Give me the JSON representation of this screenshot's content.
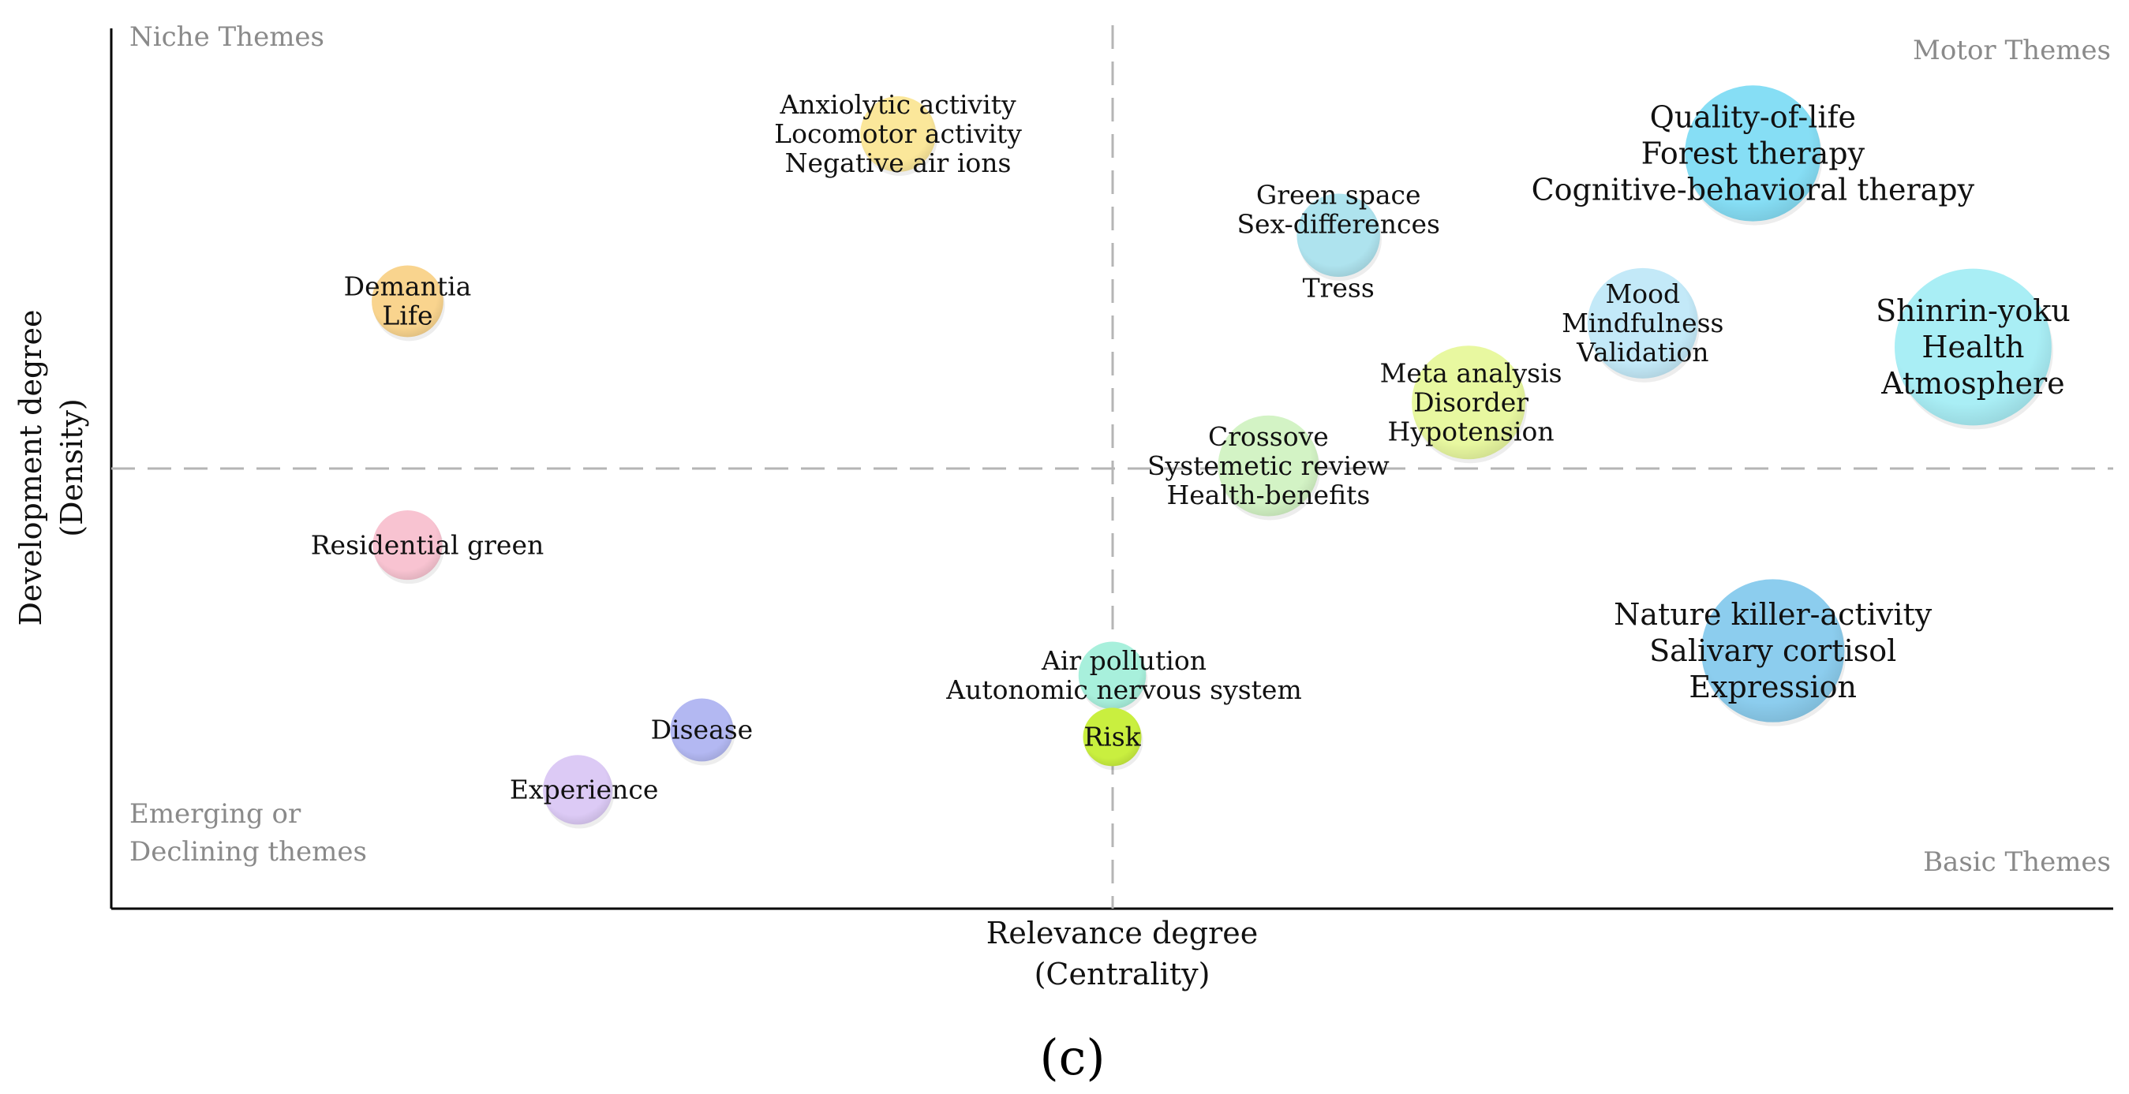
{
  "chart_data": {
    "type": "scatter",
    "subtype": "strategic-diagram-bubble",
    "xlabel": "Relevance degree",
    "xlabel_sub": "(Centrality)",
    "ylabel": "Development degree",
    "ylabel_sub": "(Density)",
    "xlim": [
      0,
      100
    ],
    "ylim": [
      0,
      100
    ],
    "x_divider": 50,
    "y_divider": 50,
    "grid": false,
    "panel_label": "(c)",
    "quadrants": {
      "top_left": "Niche Themes",
      "top_right": "Motor Themes",
      "bottom_left_line1": "Emerging or",
      "bottom_left_line2": "Declining themes",
      "bottom_right": "Basic Themes"
    },
    "clusters": [
      {
        "id": "anxiolytic",
        "x": 39.3,
        "y": 88,
        "size": 18,
        "color": "#fbe79a",
        "labels": [
          "Anxiolytic activity",
          "Locomotor activity",
          "Negative air ions"
        ]
      },
      {
        "id": "demantia",
        "x": 14.8,
        "y": 69,
        "size": 16,
        "color": "#f9d48e",
        "labels": [
          "Demantia",
          "Life"
        ]
      },
      {
        "id": "green-space",
        "x": 61.3,
        "y": 76.5,
        "size": 22,
        "color": "#aee3ee",
        "labels": [
          "Green space",
          "Sex-differences",
          "Tress"
        ]
      },
      {
        "id": "quality-of-life",
        "x": 82,
        "y": 85.8,
        "size": 55,
        "color": "#86def5",
        "labels": [
          "Quality-of-life",
          "Forest therapy",
          "Cognitive-behavioral therapy"
        ]
      },
      {
        "id": "mood",
        "x": 76.5,
        "y": 66.5,
        "size": 38,
        "color": "#c3e9f8",
        "labels": [
          "Mood",
          "Mindfulness",
          "Validation"
        ]
      },
      {
        "id": "shinrin-yoku",
        "x": 93,
        "y": 63.8,
        "size": 70,
        "color": "#a9eef5",
        "labels": [
          "Shinrin-yoku",
          "Health",
          "Atmosphere"
        ]
      },
      {
        "id": "meta-analysis",
        "x": 67.8,
        "y": 57.5,
        "size": 40,
        "color": "#e8f8a0",
        "labels": [
          "Meta analysis",
          "Disorder",
          "Hypotension"
        ]
      },
      {
        "id": "crossove",
        "x": 57.8,
        "y": 50.3,
        "size": 32,
        "color": "#d3f3c5",
        "labels": [
          "Crossove",
          "Systemetic review",
          "Health-benefits"
        ]
      },
      {
        "id": "residential-green",
        "x": 14.8,
        "y": 41.3,
        "size": 15,
        "color": "#f8c3d1",
        "labels": [
          "Residential green"
        ]
      },
      {
        "id": "nature-killer",
        "x": 83,
        "y": 29.3,
        "size": 60,
        "color": "#8ccdee",
        "labels": [
          "Nature killer-activity",
          "Salivary cortisol",
          "Expression"
        ]
      },
      {
        "id": "air-pollution",
        "x": 50,
        "y": 26.5,
        "size": 14,
        "color": "#a8f0dc",
        "labels": [
          "Air pollution",
          "Autonomic nervous system"
        ]
      },
      {
        "id": "risk",
        "x": 50,
        "y": 19.5,
        "size": 10,
        "color": "#c9ef3f",
        "labels": [
          "Risk"
        ]
      },
      {
        "id": "disease",
        "x": 29.5,
        "y": 20.3,
        "size": 12,
        "color": "#b3b8f2",
        "labels": [
          "Disease"
        ]
      },
      {
        "id": "experience",
        "x": 23.3,
        "y": 13.5,
        "size": 15,
        "color": "#dccaf5",
        "labels": [
          "Experience"
        ]
      }
    ]
  }
}
